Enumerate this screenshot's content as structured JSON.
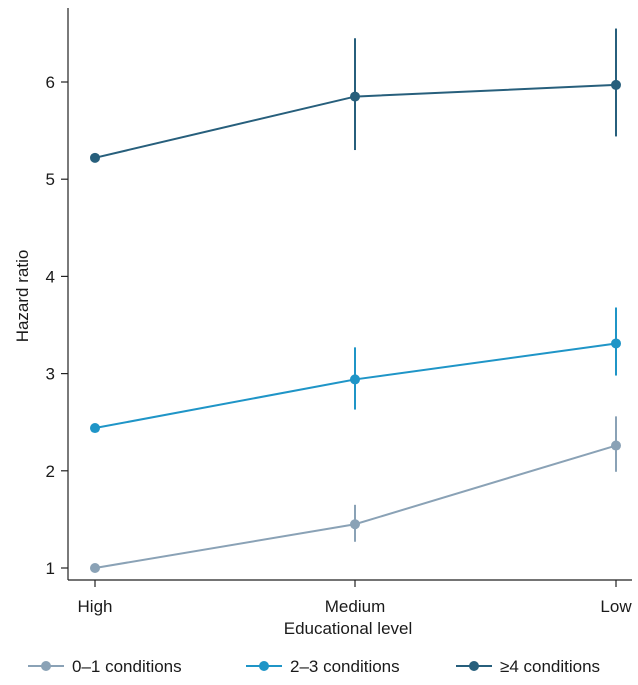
{
  "chart_data": {
    "type": "line",
    "title": "",
    "xlabel": "Educational level",
    "ylabel": "Hazard ratio",
    "categories": [
      "High",
      "Medium",
      "Low"
    ],
    "ylim": [
      0.9,
      6.75
    ],
    "yticks": [
      1,
      2,
      3,
      4,
      5,
      6
    ],
    "grid": false,
    "legend_position": "bottom",
    "series": [
      {
        "name": "0–1 conditions",
        "color": "#8aa2b6",
        "values": [
          1.0,
          1.45,
          2.26
        ],
        "ci_low": [
          null,
          1.27,
          1.99
        ],
        "ci_high": [
          null,
          1.65,
          2.56
        ]
      },
      {
        "name": "2–3 conditions",
        "color": "#1f95c7",
        "values": [
          2.44,
          2.94,
          3.31
        ],
        "ci_low": [
          null,
          2.63,
          2.98
        ],
        "ci_high": [
          null,
          3.27,
          3.68
        ]
      },
      {
        "name": "≥4 conditions",
        "color": "#275f7c",
        "values": [
          5.22,
          5.85,
          5.97
        ],
        "ci_low": [
          null,
          5.3,
          5.44
        ],
        "ci_high": [
          null,
          6.45,
          6.55
        ]
      }
    ]
  }
}
